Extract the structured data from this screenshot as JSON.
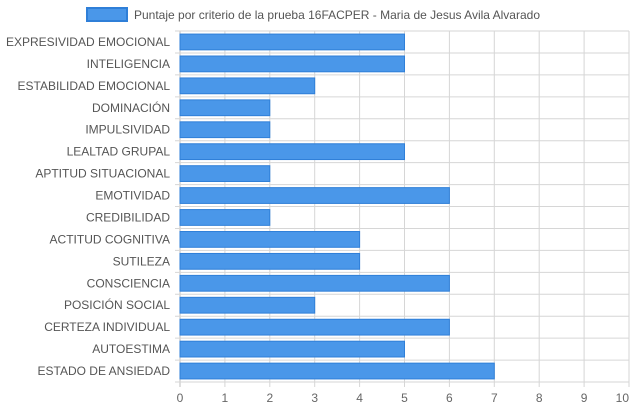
{
  "chart_data": {
    "type": "bar",
    "orientation": "horizontal",
    "categories": [
      "EXPRESIVIDAD EMOCIONAL",
      "INTELIGENCIA",
      "ESTABILIDAD EMOCIONAL",
      "DOMINACIÓN",
      "IMPULSIVIDAD",
      "LEALTAD GRUPAL",
      "APTITUD SITUACIONAL",
      "EMOTIVIDAD",
      "CREDIBILIDAD",
      "ACTITUD COGNITIVA",
      "SUTILEZA",
      "CONSCIENCIA",
      "POSICIÓN SOCIAL",
      "CERTEZA INDIVIDUAL",
      "AUTOESTIMA",
      "ESTADO DE ANSIEDAD"
    ],
    "series": [
      {
        "name": "Puntaje por criterio de la prueba 16FACPER - Maria de Jesus Avila Alvarado",
        "values": [
          5,
          5,
          3,
          2,
          2,
          5,
          2,
          6,
          2,
          4,
          4,
          6,
          3,
          6,
          5,
          7
        ],
        "color": "#4a97e9",
        "border_color": "#2f7fd8"
      }
    ],
    "xlim": [
      0,
      10
    ],
    "x_ticks": [
      0,
      1,
      2,
      3,
      4,
      5,
      6,
      7,
      8,
      9,
      10
    ],
    "grid": true,
    "legend_position": "top"
  }
}
